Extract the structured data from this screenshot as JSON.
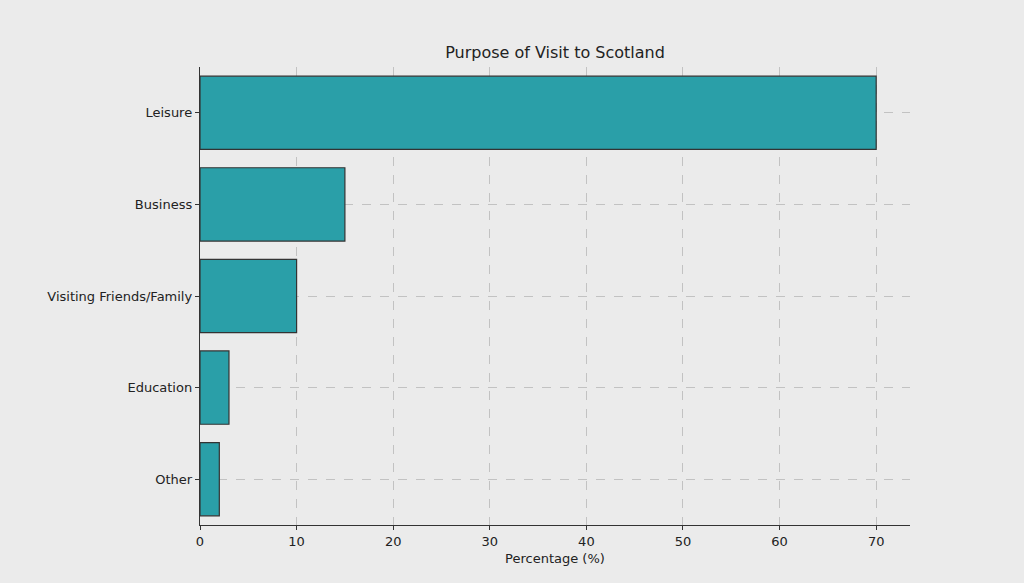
{
  "chart_data": {
    "type": "bar",
    "title": "Purpose of Visit to Scotland",
    "categories": [
      "Leisure",
      "Business",
      "Visiting Friends/Family",
      "Education",
      "Other"
    ],
    "values": [
      70,
      15,
      10,
      3,
      2
    ],
    "color": "#2a9fa8",
    "orientation": "horizontal",
    "x_label": "Percentage (%)",
    "xlim": [
      0,
      73.5
    ],
    "xticks": [
      0,
      10,
      20,
      30,
      40,
      50,
      60,
      70
    ],
    "grid": true
  }
}
